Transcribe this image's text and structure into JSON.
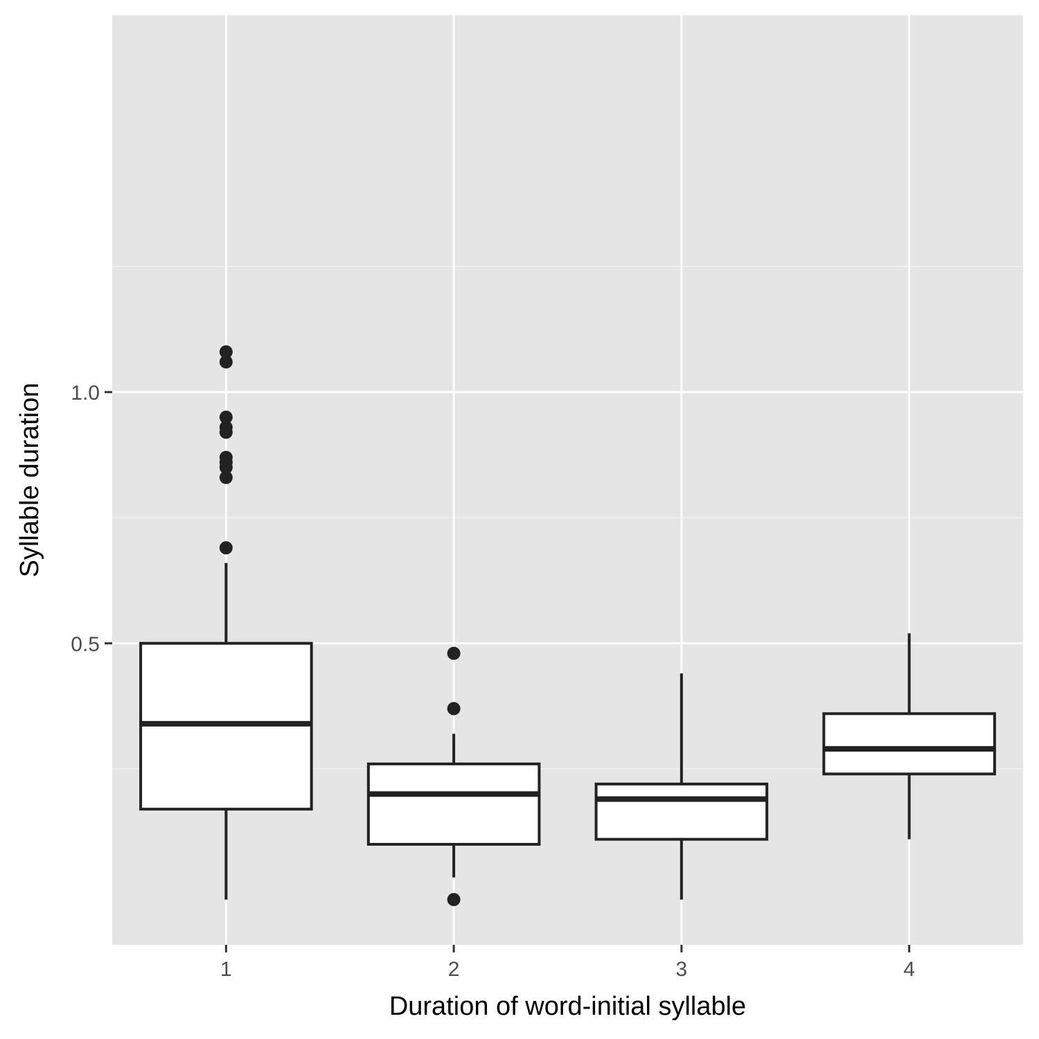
{
  "chart_data": {
    "type": "boxplot",
    "title": "",
    "xlabel": "Duration of word-initial syllable",
    "ylabel": "Syllable duration",
    "categories": [
      "1",
      "2",
      "3",
      "4"
    ],
    "y_ticks": [
      0.5,
      1.0
    ],
    "y_tick_labels": [
      "0.5",
      "1.0"
    ],
    "ylim": [
      -0.1,
      1.75
    ],
    "grid": true,
    "boxes": [
      {
        "category": "1",
        "lower_whisker": -0.01,
        "q1": 0.17,
        "median": 0.34,
        "q3": 0.5,
        "upper_whisker": 0.66,
        "outliers": [
          0.69,
          0.83,
          0.85,
          0.86,
          0.87,
          0.92,
          0.93,
          0.95,
          1.06,
          1.08
        ]
      },
      {
        "category": "2",
        "lower_whisker": 0.034,
        "q1": 0.1,
        "median": 0.2,
        "q3": 0.26,
        "upper_whisker": 0.32,
        "outliers": [
          -0.01,
          0.37,
          0.48
        ]
      },
      {
        "category": "3",
        "lower_whisker": -0.01,
        "q1": 0.11,
        "median": 0.19,
        "q3": 0.22,
        "upper_whisker": 0.44,
        "outliers": []
      },
      {
        "category": "4",
        "lower_whisker": 0.11,
        "q1": 0.24,
        "median": 0.29,
        "q3": 0.36,
        "upper_whisker": 0.52,
        "outliers": []
      }
    ],
    "colors": {
      "panel_background": "#e5e5e5",
      "grid_major": "#ffffff",
      "grid_minor": "#f2f2f2",
      "box_fill": "#ffffff",
      "box_stroke": "#222222",
      "tick_text": "#4d4d4d",
      "axis_title": "#000000"
    }
  }
}
